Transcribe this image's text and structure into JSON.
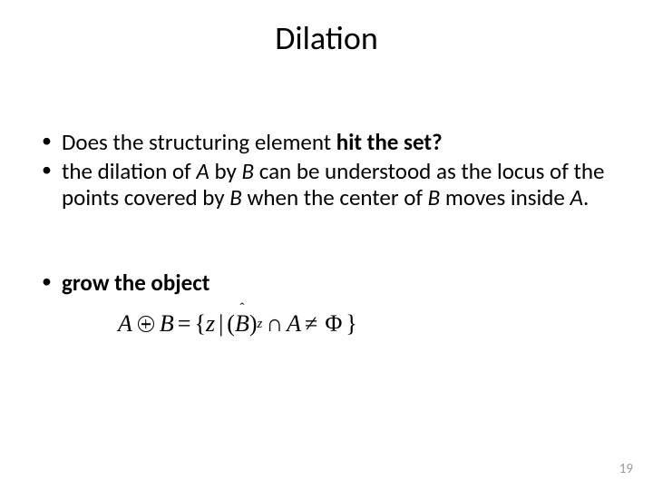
{
  "title": "Dilation",
  "bullets": {
    "b1_pre": "Does the structuring element ",
    "b1_bold": "hit the set?",
    "b2_pre": "the dilation of ",
    "b2_A": "A",
    "b2_mid1": " by ",
    "b2_B": "B",
    "b2_mid2": " can be understood as the locus of the points covered by ",
    "b2_B2": "B",
    "b2_mid3": " when the center of ",
    "b2_B3": "B",
    "b2_mid4": " moves inside ",
    "b2_A2": "A",
    "b2_end": "."
  },
  "equation": {
    "A": "A",
    "B": "B",
    "eq": "=",
    "lbrace": "{",
    "z": "z",
    "bar": "|",
    "lparen": "(",
    "Bhat": "B",
    "hat": "ˆ",
    "rparen": ")",
    "sub_z": "z",
    "cap": "∩",
    "A2": "A",
    "neq": "≠",
    "Phi": "Φ",
    "rbrace": "}"
  },
  "grow": "grow the object",
  "pagenum": "19",
  "colors": {
    "text": "#000000",
    "bg": "#ffffff",
    "pagenum": "#9a9a9a"
  }
}
